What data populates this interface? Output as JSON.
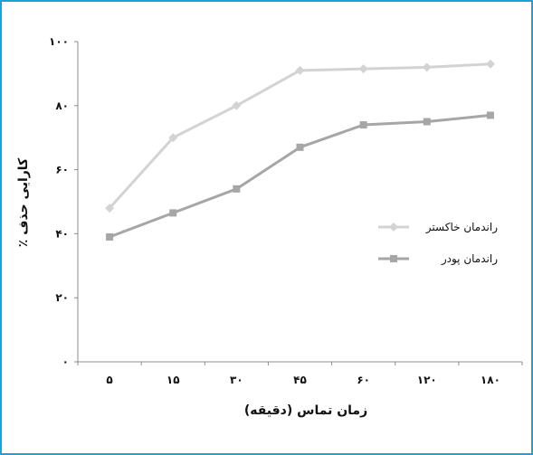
{
  "chart_data": {
    "type": "line",
    "x_label": "زمان تماس (دقیقه)",
    "y_label": "کارایی حذف ٪",
    "categories": [
      "۵",
      "۱۵",
      "۳۰",
      "۴۵",
      "۶۰",
      "۱۲۰",
      "۱۸۰"
    ],
    "y_ticks": [
      "۰",
      "۲۰",
      "۴۰",
      "۶۰",
      "۸۰",
      "۱۰۰"
    ],
    "ylim": [
      0,
      100
    ],
    "grid": false,
    "legend_position": "right",
    "series": [
      {
        "name": "راندمان خاکستر",
        "values": [
          48,
          70,
          80,
          91,
          91.5,
          92,
          93
        ],
        "color": "#d3d3d3",
        "marker": "diamond"
      },
      {
        "name": "راندمان پودر",
        "values": [
          39,
          46.5,
          54,
          67,
          74,
          75,
          77
        ],
        "color": "#a6a6a6",
        "marker": "square"
      }
    ]
  }
}
